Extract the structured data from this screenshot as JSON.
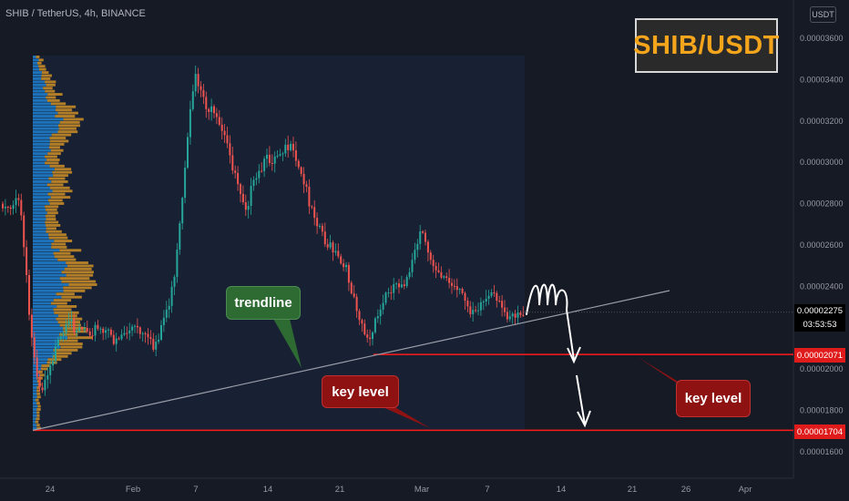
{
  "header": {
    "symbol_line": "SHIB / TetherUS, 4h, BINANCE"
  },
  "currency_badge": "USDT",
  "title_box": "SHIB/USDT",
  "price_axis": {
    "labels": [
      "0.00003600",
      "0.00003400",
      "0.00003200",
      "0.00003000",
      "0.00002800",
      "0.00002600",
      "0.00002400",
      "0.00002000",
      "0.00001800",
      "0.00001600"
    ],
    "current_price": "0.00002275",
    "countdown": "03:53:53",
    "tag_key_level_upper": "0.00002071",
    "tag_key_level_lower": "0.00001704"
  },
  "time_axis": {
    "labels": [
      "24",
      "Feb",
      "7",
      "14",
      "21",
      "Mar",
      "7",
      "14",
      "21",
      "26",
      "Apr"
    ]
  },
  "annotations": {
    "trendline_label": "trendline",
    "key_level_label_1": "key level",
    "key_level_label_2": "key level"
  },
  "colors": {
    "background": "#161a25",
    "up_candle": "#26a69a",
    "down_candle": "#ef5350",
    "key_level_line": "#ff1a1a",
    "trendline": "#9a9ea8",
    "title_text": "#f4a51c",
    "volume_profile_up": "#2196f3",
    "volume_profile_down": "#f5a623"
  },
  "chart_data": {
    "type": "candlestick",
    "symbol": "SHIB / TetherUS",
    "timeframe": "4h",
    "exchange": "BINANCE",
    "y_range": [
      1.53e-05,
      3.7e-05
    ],
    "horizontal_levels": [
      2.071e-05,
      1.704e-05
    ],
    "current_price": 2.275e-05,
    "close_path": [
      {
        "t": "Jan 21",
        "close": 2.8e-05
      },
      {
        "t": "Jan 22",
        "close": 2.18e-05
      },
      {
        "t": "Jan 23",
        "close": 1.9e-05
      },
      {
        "t": "Jan 24",
        "close": 2.05e-05
      },
      {
        "t": "Jan 26",
        "close": 2.22e-05
      },
      {
        "t": "Jan 28",
        "close": 2.2e-05
      },
      {
        "t": "Jan 30",
        "close": 2.15e-05
      },
      {
        "t": "Feb 1",
        "close": 2.2e-05
      },
      {
        "t": "Feb 3",
        "close": 2.1e-05
      },
      {
        "t": "Feb 5",
        "close": 2.4e-05
      },
      {
        "t": "Feb 6",
        "close": 2.9e-05
      },
      {
        "t": "Feb 7",
        "close": 3.45e-05
      },
      {
        "t": "Feb 8",
        "close": 3.3e-05
      },
      {
        "t": "Feb 10",
        "close": 3.1e-05
      },
      {
        "t": "Feb 12",
        "close": 2.8e-05
      },
      {
        "t": "Feb 14",
        "close": 3e-05
      },
      {
        "t": "Feb 16",
        "close": 3.1e-05
      },
      {
        "t": "Feb 18",
        "close": 2.85e-05
      },
      {
        "t": "Feb 20",
        "close": 2.6e-05
      },
      {
        "t": "Feb 22",
        "close": 2.45e-05
      },
      {
        "t": "Feb 24",
        "close": 2.12e-05
      },
      {
        "t": "Feb 26",
        "close": 2.4e-05
      },
      {
        "t": "Feb 28",
        "close": 2.45e-05
      },
      {
        "t": "Mar 1",
        "close": 2.65e-05
      },
      {
        "t": "Mar 2",
        "close": 2.55e-05
      },
      {
        "t": "Mar 4",
        "close": 2.4e-05
      },
      {
        "t": "Mar 6",
        "close": 2.3e-05
      },
      {
        "t": "Mar 8",
        "close": 2.35e-05
      },
      {
        "t": "Mar 9",
        "close": 2.28e-05
      }
    ]
  }
}
